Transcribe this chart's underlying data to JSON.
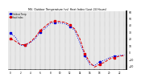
{
  "title": "Mil. Outdoor Temperature (vs) Heat Index (Last 24 Hours)",
  "legend_labels": [
    "Outdoor Temp",
    "Heat Index"
  ],
  "line_colors": [
    "#0000dd",
    "#dd0000"
  ],
  "background_color": "#ffffff",
  "plot_bg_color": "#e8e8e8",
  "grid_color": "#888888",
  "ylim": [
    -25,
    60
  ],
  "yticks": [
    60,
    50,
    40,
    30,
    20,
    10,
    0,
    -10,
    -20
  ],
  "temp_data": [
    28,
    22,
    10,
    10,
    14,
    20,
    30,
    35,
    42,
    44,
    43,
    42,
    38,
    32,
    14,
    -5,
    -18,
    -20,
    -14,
    -12,
    -8,
    -6,
    -5,
    -4
  ],
  "heat_data": [
    20,
    16,
    11,
    11,
    15,
    22,
    32,
    38,
    44,
    46,
    45,
    44,
    40,
    34,
    20,
    -2,
    -15,
    -22,
    -18,
    -15,
    -10,
    -8,
    -6,
    -5
  ],
  "num_points": 24,
  "marker_indices_temp": [
    0,
    3,
    6,
    9,
    12,
    15,
    18,
    21
  ],
  "marker_indices_heat": [
    0,
    3,
    6,
    9,
    12,
    15,
    18,
    21
  ]
}
